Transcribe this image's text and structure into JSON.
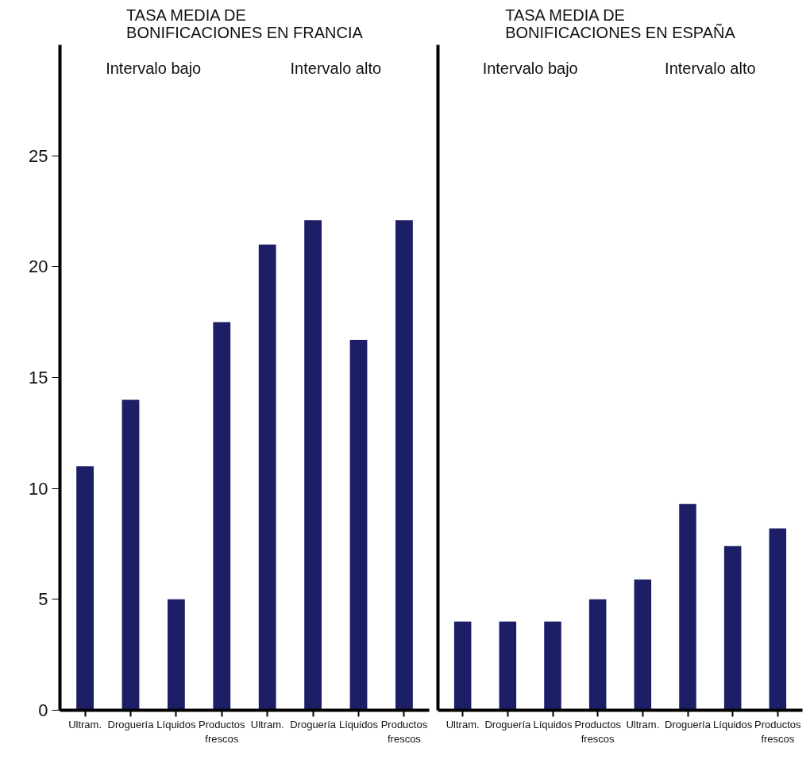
{
  "chart_data": [
    {
      "type": "bar",
      "title": "TASA MEDIA DE\nBONIFICACIONES EN FRANCIA",
      "annotations": [
        "Intervalo bajo",
        "Intervalo alto"
      ],
      "categories": [
        "Ultram.",
        "Droguería",
        "Líquidos",
        "Productos frescos",
        "Ultram.",
        "Droguería",
        "Líquidos",
        "Productos frescos"
      ],
      "values": [
        11,
        14,
        5,
        17.5,
        21,
        22.1,
        16.7,
        22.1
      ],
      "color": "#1c1f66",
      "ylim": [
        0,
        30
      ],
      "yticks": [
        0,
        5,
        10,
        15,
        20,
        25
      ],
      "grid": false
    },
    {
      "type": "bar",
      "title": "TASA MEDIA DE\nBONIFICACIONES EN ESPAÑA",
      "annotations": [
        "Intervalo bajo",
        "Intervalo alto"
      ],
      "categories": [
        "Ultram.",
        "Droguería",
        "Líquidos",
        "Productos frescos",
        "Ultram.",
        "Droguería",
        "Líquidos",
        "Productos frescos"
      ],
      "values": [
        4,
        4,
        4,
        5,
        5.9,
        9.3,
        7.4,
        8.2
      ],
      "color": "#1c1f66",
      "ylim": [
        0,
        30
      ],
      "yticks": [
        0,
        5,
        10,
        15,
        20,
        25
      ],
      "grid": false,
      "tick_labels": "x"
    }
  ]
}
